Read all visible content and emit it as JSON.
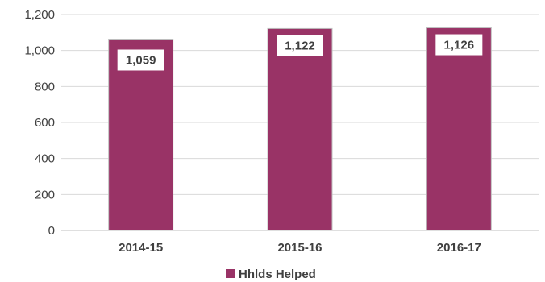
{
  "chart_data": {
    "type": "bar",
    "categories": [
      "2014-15",
      "2015-16",
      "2016-17"
    ],
    "series": [
      {
        "name": "Hhlds Helped",
        "values": [
          1059,
          1122,
          1126
        ],
        "color": "#993366"
      }
    ],
    "data_labels": [
      "1,059",
      "1,122",
      "1,126"
    ],
    "y_ticks": [
      0,
      200,
      400,
      600,
      800,
      1000,
      1200
    ],
    "y_tick_labels": [
      "0",
      "200",
      "400",
      "600",
      "800",
      "1,000",
      "1,200"
    ],
    "ylim": [
      0,
      1200
    ],
    "grid": true,
    "legend_position": "bottom",
    "grid_color": "#d9d9d9",
    "axis_color": "#bfbfbf"
  }
}
